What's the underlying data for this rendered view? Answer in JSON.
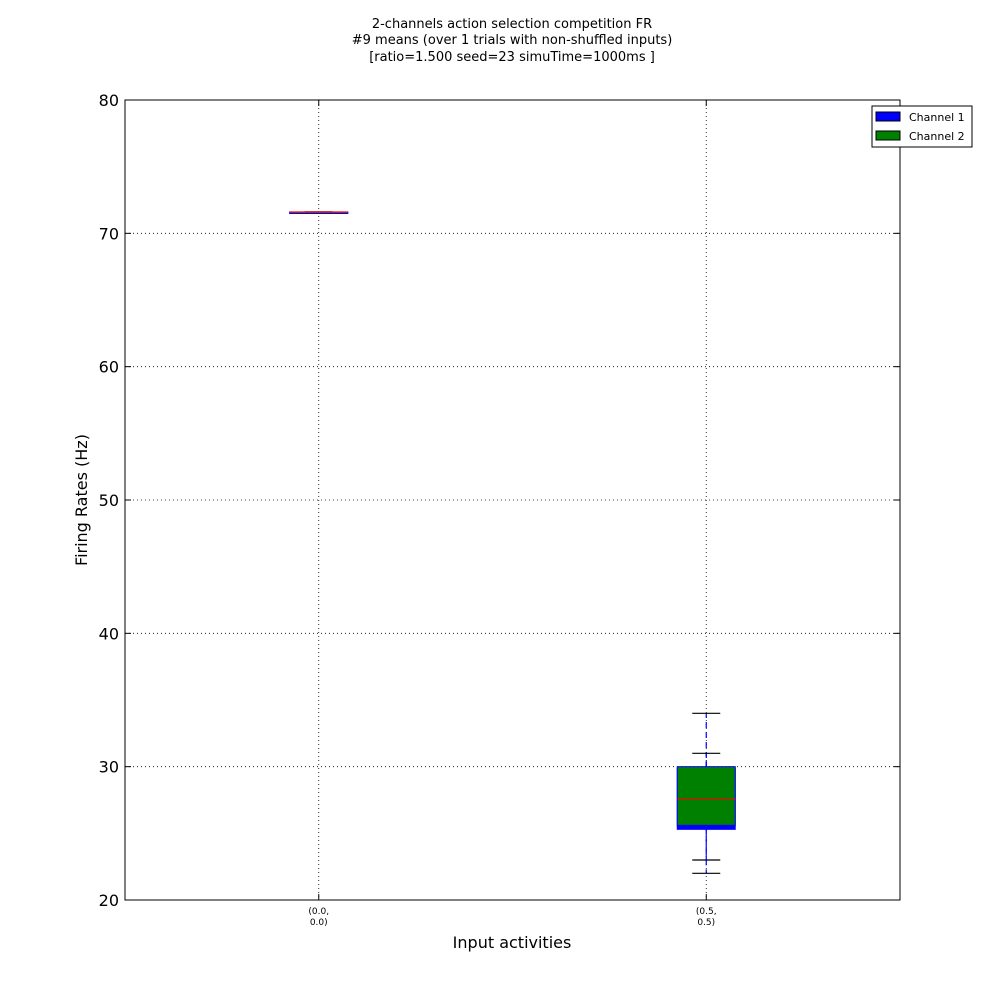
{
  "chart_data": {
    "type": "box",
    "title_lines": [
      "2-channels action selection competition FR",
      "#9 means (over 1 trials with non-shuffled inputs)",
      "[ratio=1.500 seed=23 simuTime=1000ms ]"
    ],
    "xlabel": "Input activities",
    "ylabel": "Firing Rates (Hz)",
    "ylim": [
      20,
      80
    ],
    "yticks": [
      20,
      30,
      40,
      50,
      60,
      70,
      80
    ],
    "grid": true,
    "legend_position": "upper-right (outside)",
    "categories": [
      [
        "(0.0,",
        "0.0)"
      ],
      [
        "(0.5,",
        "0.5)"
      ]
    ],
    "series": [
      {
        "name": "Channel 1",
        "color": "#0000ff",
        "boxes": [
          {
            "category": 0,
            "whisker_low": 71.5,
            "q1": 71.5,
            "median": 71.5,
            "q3": 71.6,
            "whisker_high": 71.6
          },
          {
            "category": 1,
            "whisker_low": 22.0,
            "q1": 25.3,
            "median": 26.7,
            "q3": 29.9,
            "whisker_high": 34.0
          }
        ]
      },
      {
        "name": "Channel 2",
        "color": "#008000",
        "boxes": [
          {
            "category": 0,
            "whisker_low": 71.5,
            "q1": 71.5,
            "median": 71.6,
            "q3": 71.6,
            "whisker_high": 71.6
          },
          {
            "category": 1,
            "whisker_low": 23.0,
            "q1": 25.6,
            "median": 27.6,
            "q3": 30.0,
            "whisker_high": 31.0
          }
        ]
      }
    ]
  }
}
